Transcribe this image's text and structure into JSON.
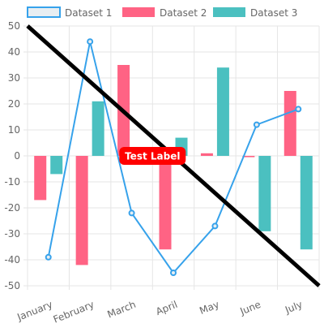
{
  "chart_data": {
    "type": "bar",
    "categories": [
      "January",
      "February",
      "March",
      "April",
      "May",
      "June",
      "July"
    ],
    "ylim": [
      -50,
      50
    ],
    "y_ticks": [
      50,
      40,
      30,
      20,
      10,
      0,
      -10,
      -20,
      -30,
      -40,
      -50
    ],
    "grid": true,
    "legend_position": "top",
    "series": [
      {
        "name": "Dataset 1",
        "type": "line",
        "values": [
          -39,
          44,
          -22,
          -45,
          -27,
          12,
          18
        ],
        "color": "#36a2eb",
        "fill": "#e8eef2"
      },
      {
        "name": "Dataset 2",
        "type": "bar",
        "values": [
          -17,
          -42,
          35,
          -36,
          1,
          -0.5,
          25
        ],
        "color": "#ff6384"
      },
      {
        "name": "Dataset 3",
        "type": "bar",
        "values": [
          -7,
          21,
          1,
          7,
          34,
          -29,
          -36
        ],
        "color": "#4bc0c0"
      }
    ],
    "annotations": [
      {
        "type": "line",
        "from_y": 50,
        "to_y": -50,
        "color": "#000000"
      },
      {
        "type": "label",
        "text": "Test Label",
        "x_category": "April",
        "y": 0,
        "background": "#ff0000",
        "color": "#ffffff"
      }
    ]
  }
}
